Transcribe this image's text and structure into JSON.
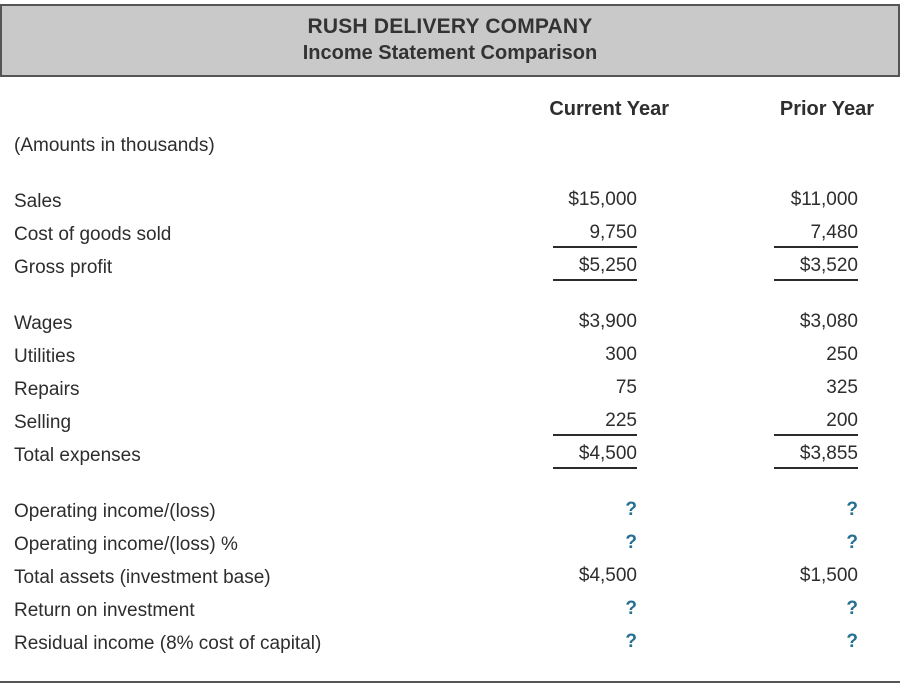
{
  "header": {
    "title": "RUSH DELIVERY COMPANY",
    "subtitle": "Income Statement Comparison"
  },
  "table": {
    "note": "(Amounts in thousands)",
    "columns": [
      {
        "id": "current",
        "label": "Current Year"
      },
      {
        "id": "prior",
        "label": "Prior Year"
      }
    ],
    "rows": [
      {
        "label": "Sales",
        "current": "$15,000",
        "prior": "$11,000",
        "underline": false,
        "spacer_before": true
      },
      {
        "label": "Cost of goods sold",
        "current": "9,750",
        "prior": "7,480",
        "underline": true,
        "spacer_before": false
      },
      {
        "label": "Gross profit",
        "current": "$5,250",
        "prior": "$3,520",
        "underline": true,
        "spacer_before": false
      },
      {
        "label": "Wages",
        "current": "$3,900",
        "prior": "$3,080",
        "underline": false,
        "spacer_before": true
      },
      {
        "label": "Utilities",
        "current": "300",
        "prior": "250",
        "underline": false,
        "spacer_before": false
      },
      {
        "label": "Repairs",
        "current": "75",
        "prior": "325",
        "underline": false,
        "spacer_before": false
      },
      {
        "label": "Selling",
        "current": "225",
        "prior": "200",
        "underline": true,
        "spacer_before": false
      },
      {
        "label": "Total expenses",
        "current": "$4,500",
        "prior": "$3,855",
        "underline": true,
        "spacer_before": false
      },
      {
        "label": "Operating income/(loss)",
        "current": "?",
        "prior": "?",
        "underline": false,
        "spacer_before": true
      },
      {
        "label": "Operating income/(loss) %",
        "current": "?",
        "prior": "?",
        "underline": false,
        "spacer_before": false
      },
      {
        "label": "Total assets (investment base)",
        "current": "$4,500",
        "prior": "$1,500",
        "underline": false,
        "spacer_before": false
      },
      {
        "label": "Return on investment",
        "current": "?",
        "prior": "?",
        "underline": false,
        "spacer_before": false
      },
      {
        "label": "Residual income (8% cost of capital)",
        "current": "?",
        "prior": "?",
        "underline": false,
        "spacer_before": false
      }
    ]
  },
  "colors": {
    "header_bg": "#c9c9c9",
    "border": "#555555",
    "text": "#2d2d2d",
    "unknown_value_accent": "#256f92"
  }
}
